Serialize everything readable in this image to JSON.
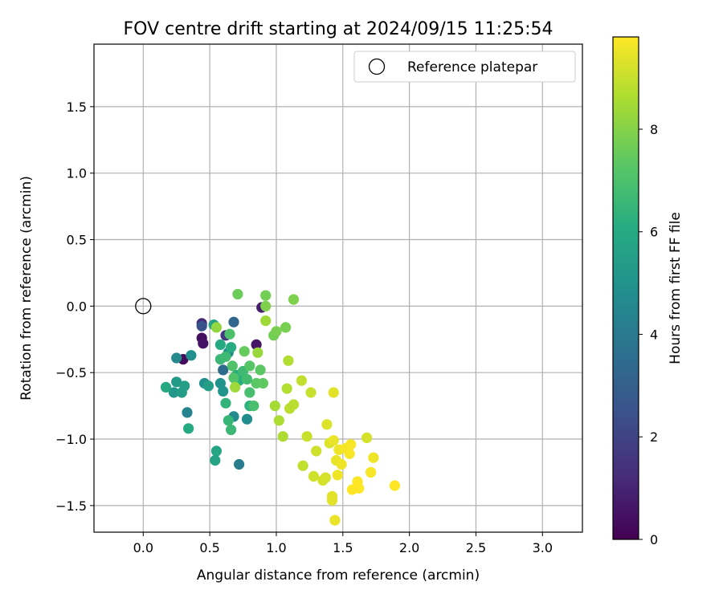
{
  "chart_data": {
    "type": "scatter",
    "title": "FOV centre drift starting at 2024/09/15 11:25:54",
    "xlabel": "Angular distance from reference (arcmin)",
    "ylabel": "Rotation from reference (arcmin)",
    "xlim": [
      -0.37,
      3.3
    ],
    "ylim": [
      -1.7,
      1.97
    ],
    "xticks": [
      0.0,
      0.5,
      1.0,
      1.5,
      2.0,
      2.5,
      3.0
    ],
    "xtick_labels": [
      "0.0",
      "0.5",
      "1.0",
      "1.5",
      "2.0",
      "2.5",
      "3.0"
    ],
    "yticks": [
      -1.5,
      -1.0,
      -0.5,
      0.0,
      0.5,
      1.0,
      1.5
    ],
    "ytick_labels": [
      "−1.5",
      "−1.0",
      "−0.5",
      "0.0",
      "0.5",
      "1.0",
      "1.5"
    ],
    "grid": true,
    "legend": {
      "placement": "top-right",
      "entries": [
        "Reference platepar"
      ]
    },
    "reference_point": {
      "x": 0.0,
      "y": 0.0
    },
    "colorbar": {
      "label": "Hours from first FF file",
      "min": 0,
      "max": 9.8,
      "ticks": [
        0,
        2,
        4,
        6,
        8
      ],
      "tick_labels": [
        "0",
        "2",
        "4",
        "6",
        "8"
      ],
      "colormap": "viridis"
    },
    "points": [
      {
        "x": 0.3,
        "y": -0.4,
        "h": 0.3
      },
      {
        "x": 0.44,
        "y": -0.24,
        "h": 0.4
      },
      {
        "x": 0.45,
        "y": -0.28,
        "h": 0.5
      },
      {
        "x": 0.85,
        "y": -0.29,
        "h": 0.6
      },
      {
        "x": 0.89,
        "y": -0.01,
        "h": 0.8
      },
      {
        "x": 0.44,
        "y": -0.13,
        "h": 1.2
      },
      {
        "x": 0.62,
        "y": -0.22,
        "h": 1.6
      },
      {
        "x": 0.44,
        "y": -0.15,
        "h": 2.5
      },
      {
        "x": 0.68,
        "y": -0.12,
        "h": 3.3
      },
      {
        "x": 0.6,
        "y": -0.48,
        "h": 3.5
      },
      {
        "x": 0.72,
        "y": -1.19,
        "h": 4.1
      },
      {
        "x": 0.33,
        "y": -0.8,
        "h": 4.4
      },
      {
        "x": 0.25,
        "y": -0.39,
        "h": 4.6
      },
      {
        "x": 0.64,
        "y": -0.35,
        "h": 4.7
      },
      {
        "x": 0.68,
        "y": -0.83,
        "h": 4.7
      },
      {
        "x": 0.78,
        "y": -0.85,
        "h": 4.8
      },
      {
        "x": 0.36,
        "y": -0.37,
        "h": 4.9
      },
      {
        "x": 0.46,
        "y": -0.58,
        "h": 4.9
      },
      {
        "x": 0.58,
        "y": -0.58,
        "h": 5.0
      },
      {
        "x": 0.6,
        "y": -0.64,
        "h": 5.1
      },
      {
        "x": 0.23,
        "y": -0.65,
        "h": 5.2
      },
      {
        "x": 0.25,
        "y": -0.57,
        "h": 5.3
      },
      {
        "x": 0.29,
        "y": -0.65,
        "h": 5.4
      },
      {
        "x": 0.31,
        "y": -0.6,
        "h": 5.5
      },
      {
        "x": 0.49,
        "y": -0.6,
        "h": 5.5
      },
      {
        "x": 0.53,
        "y": -0.14,
        "h": 5.6
      },
      {
        "x": 0.54,
        "y": -1.16,
        "h": 5.7
      },
      {
        "x": 0.55,
        "y": -1.09,
        "h": 5.8
      },
      {
        "x": 0.17,
        "y": -0.61,
        "h": 5.9
      },
      {
        "x": 0.34,
        "y": -0.92,
        "h": 6.0
      },
      {
        "x": 0.58,
        "y": -0.29,
        "h": 6.0
      },
      {
        "x": 0.66,
        "y": -0.31,
        "h": 6.1
      },
      {
        "x": 0.7,
        "y": -0.52,
        "h": 6.1
      },
      {
        "x": 0.72,
        "y": -0.56,
        "h": 6.2
      },
      {
        "x": 0.8,
        "y": -0.75,
        "h": 6.3
      },
      {
        "x": 0.62,
        "y": -0.73,
        "h": 6.4
      },
      {
        "x": 0.64,
        "y": -0.86,
        "h": 6.5
      },
      {
        "x": 0.66,
        "y": -0.93,
        "h": 6.6
      },
      {
        "x": 0.58,
        "y": -0.4,
        "h": 6.6
      },
      {
        "x": 0.62,
        "y": -0.38,
        "h": 6.7
      },
      {
        "x": 0.75,
        "y": -0.49,
        "h": 6.7
      },
      {
        "x": 0.78,
        "y": -0.55,
        "h": 6.8
      },
      {
        "x": 0.8,
        "y": -0.65,
        "h": 6.9
      },
      {
        "x": 0.83,
        "y": -0.75,
        "h": 6.9
      },
      {
        "x": 0.65,
        "y": -0.21,
        "h": 7.0
      },
      {
        "x": 0.67,
        "y": -0.45,
        "h": 7.1
      },
      {
        "x": 0.68,
        "y": -0.54,
        "h": 7.1
      },
      {
        "x": 0.8,
        "y": -0.45,
        "h": 7.2
      },
      {
        "x": 0.85,
        "y": -0.58,
        "h": 7.3
      },
      {
        "x": 0.88,
        "y": -0.48,
        "h": 7.3
      },
      {
        "x": 0.9,
        "y": -0.58,
        "h": 7.4
      },
      {
        "x": 0.76,
        "y": -0.34,
        "h": 7.5
      },
      {
        "x": 0.71,
        "y": 0.09,
        "h": 7.6
      },
      {
        "x": 0.92,
        "y": 0.08,
        "h": 7.7
      },
      {
        "x": 0.98,
        "y": -0.22,
        "h": 7.7
      },
      {
        "x": 1.0,
        "y": -0.19,
        "h": 7.8
      },
      {
        "x": 1.07,
        "y": -0.16,
        "h": 7.8
      },
      {
        "x": 1.13,
        "y": 0.05,
        "h": 7.9
      },
      {
        "x": 0.92,
        "y": 0.0,
        "h": 7.9
      },
      {
        "x": 0.55,
        "y": -0.16,
        "h": 8.2
      },
      {
        "x": 0.86,
        "y": -0.35,
        "h": 8.3
      },
      {
        "x": 0.69,
        "y": -0.61,
        "h": 8.4
      },
      {
        "x": 0.92,
        "y": -0.11,
        "h": 8.4
      },
      {
        "x": 0.99,
        "y": -0.75,
        "h": 8.5
      },
      {
        "x": 1.02,
        "y": -0.86,
        "h": 8.6
      },
      {
        "x": 1.05,
        "y": -0.98,
        "h": 8.6
      },
      {
        "x": 1.08,
        "y": -0.62,
        "h": 8.7
      },
      {
        "x": 1.09,
        "y": -0.41,
        "h": 8.7
      },
      {
        "x": 1.1,
        "y": -0.77,
        "h": 8.8
      },
      {
        "x": 1.13,
        "y": -0.74,
        "h": 8.8
      },
      {
        "x": 1.19,
        "y": -0.56,
        "h": 8.9
      },
      {
        "x": 1.2,
        "y": -1.2,
        "h": 8.9
      },
      {
        "x": 1.23,
        "y": -0.98,
        "h": 9.0
      },
      {
        "x": 1.26,
        "y": -0.65,
        "h": 9.0
      },
      {
        "x": 1.28,
        "y": -1.28,
        "h": 9.1
      },
      {
        "x": 1.3,
        "y": -1.09,
        "h": 9.1
      },
      {
        "x": 1.35,
        "y": -1.31,
        "h": 9.2
      },
      {
        "x": 1.37,
        "y": -1.29,
        "h": 9.2
      },
      {
        "x": 1.38,
        "y": -0.89,
        "h": 9.3
      },
      {
        "x": 1.4,
        "y": -1.03,
        "h": 9.3
      },
      {
        "x": 1.42,
        "y": -1.43,
        "h": 9.4
      },
      {
        "x": 1.42,
        "y": -1.46,
        "h": 9.4
      },
      {
        "x": 1.43,
        "y": -0.65,
        "h": 9.4
      },
      {
        "x": 1.43,
        "y": -1.01,
        "h": 9.5
      },
      {
        "x": 1.44,
        "y": -1.61,
        "h": 9.5
      },
      {
        "x": 1.45,
        "y": -1.16,
        "h": 9.5
      },
      {
        "x": 1.46,
        "y": -1.27,
        "h": 9.6
      },
      {
        "x": 1.47,
        "y": -1.08,
        "h": 9.6
      },
      {
        "x": 1.49,
        "y": -1.19,
        "h": 9.6
      },
      {
        "x": 1.52,
        "y": -1.07,
        "h": 9.7
      },
      {
        "x": 1.55,
        "y": -1.11,
        "h": 9.7
      },
      {
        "x": 1.56,
        "y": -1.04,
        "h": 9.7
      },
      {
        "x": 1.57,
        "y": -1.38,
        "h": 9.8
      },
      {
        "x": 1.61,
        "y": -1.32,
        "h": 9.8
      },
      {
        "x": 1.62,
        "y": -1.37,
        "h": 9.8
      },
      {
        "x": 1.68,
        "y": -0.99,
        "h": 9.2
      },
      {
        "x": 1.71,
        "y": -1.25,
        "h": 9.7
      },
      {
        "x": 1.73,
        "y": -1.14,
        "h": 9.6
      },
      {
        "x": 1.89,
        "y": -1.35,
        "h": 9.8
      }
    ]
  }
}
